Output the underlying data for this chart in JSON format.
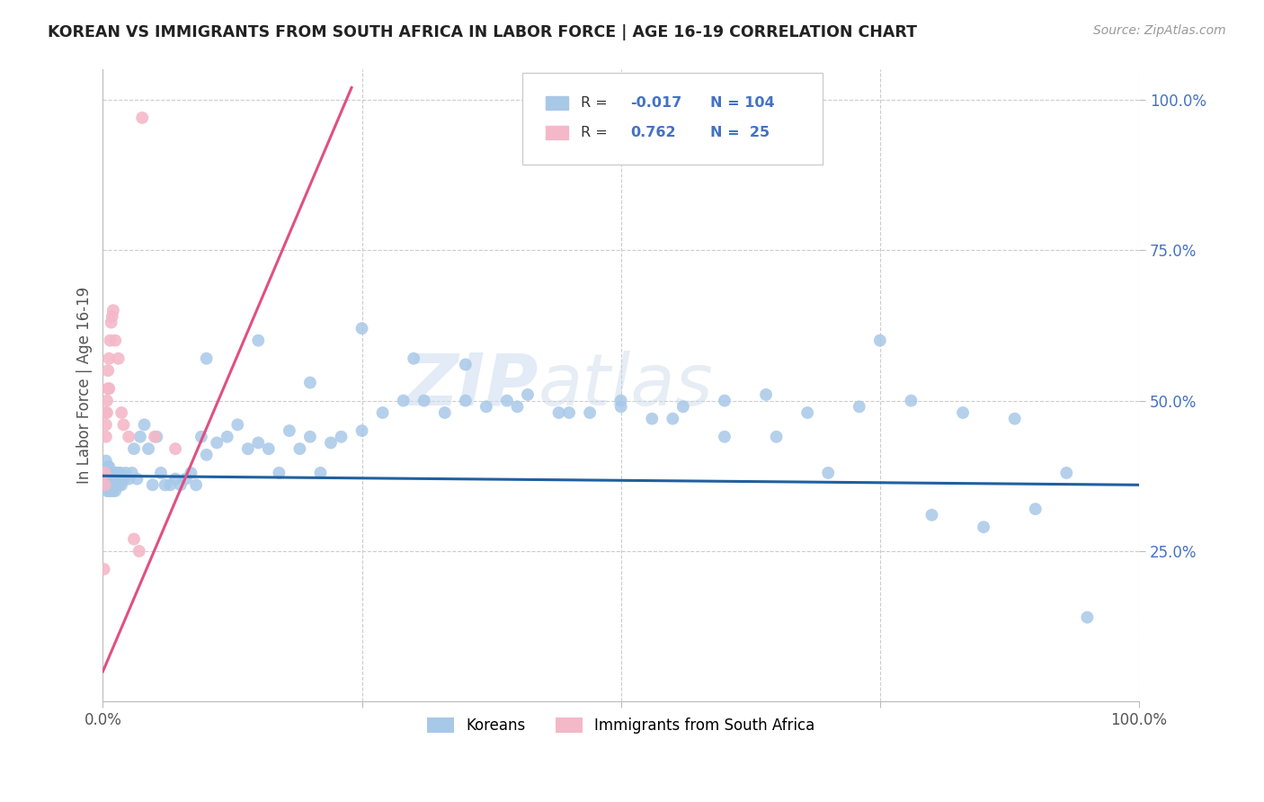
{
  "title": "KOREAN VS IMMIGRANTS FROM SOUTH AFRICA IN LABOR FORCE | AGE 16-19 CORRELATION CHART",
  "source": "Source: ZipAtlas.com",
  "ylabel": "In Labor Force | Age 16-19",
  "xlim": [
    0.0,
    1.0
  ],
  "ylim": [
    0.0,
    1.05
  ],
  "blue_color": "#a8c8e8",
  "pink_color": "#f4b8c8",
  "blue_line_color": "#2060a0",
  "pink_line_color": "#e05080",
  "watermark_zip": "ZIP",
  "watermark_atlas": "atlas",
  "legend_label_koreans": "Koreans",
  "legend_label_immigrants": "Immigrants from South Africa",
  "blue_x": [
    0.002,
    0.003,
    0.003,
    0.004,
    0.004,
    0.005,
    0.005,
    0.005,
    0.006,
    0.006,
    0.006,
    0.007,
    0.007,
    0.008,
    0.008,
    0.009,
    0.009,
    0.01,
    0.01,
    0.011,
    0.011,
    0.012,
    0.012,
    0.013,
    0.013,
    0.014,
    0.015,
    0.016,
    0.017,
    0.018,
    0.02,
    0.022,
    0.025,
    0.028,
    0.03,
    0.033,
    0.036,
    0.04,
    0.044,
    0.048,
    0.052,
    0.056,
    0.06,
    0.065,
    0.07,
    0.075,
    0.08,
    0.085,
    0.09,
    0.095,
    0.1,
    0.11,
    0.12,
    0.13,
    0.14,
    0.15,
    0.16,
    0.17,
    0.18,
    0.19,
    0.2,
    0.21,
    0.22,
    0.23,
    0.25,
    0.27,
    0.29,
    0.31,
    0.33,
    0.35,
    0.37,
    0.39,
    0.41,
    0.44,
    0.47,
    0.5,
    0.53,
    0.56,
    0.6,
    0.64,
    0.68,
    0.73,
    0.78,
    0.83,
    0.88,
    0.93,
    0.1,
    0.15,
    0.2,
    0.25,
    0.3,
    0.35,
    0.4,
    0.45,
    0.5,
    0.55,
    0.6,
    0.65,
    0.7,
    0.75,
    0.8,
    0.85,
    0.9,
    0.95
  ],
  "blue_y": [
    0.38,
    0.4,
    0.36,
    0.38,
    0.35,
    0.37,
    0.39,
    0.36,
    0.37,
    0.39,
    0.35,
    0.38,
    0.36,
    0.37,
    0.35,
    0.38,
    0.36,
    0.37,
    0.35,
    0.38,
    0.36,
    0.37,
    0.35,
    0.38,
    0.36,
    0.37,
    0.38,
    0.36,
    0.38,
    0.36,
    0.37,
    0.38,
    0.37,
    0.38,
    0.42,
    0.37,
    0.44,
    0.46,
    0.42,
    0.36,
    0.44,
    0.38,
    0.36,
    0.36,
    0.37,
    0.36,
    0.37,
    0.38,
    0.36,
    0.44,
    0.41,
    0.43,
    0.44,
    0.46,
    0.42,
    0.43,
    0.42,
    0.38,
    0.45,
    0.42,
    0.44,
    0.38,
    0.43,
    0.44,
    0.45,
    0.48,
    0.5,
    0.5,
    0.48,
    0.5,
    0.49,
    0.5,
    0.51,
    0.48,
    0.48,
    0.49,
    0.47,
    0.49,
    0.5,
    0.51,
    0.48,
    0.49,
    0.5,
    0.48,
    0.47,
    0.38,
    0.57,
    0.6,
    0.53,
    0.62,
    0.57,
    0.56,
    0.49,
    0.48,
    0.5,
    0.47,
    0.44,
    0.44,
    0.38,
    0.6,
    0.31,
    0.29,
    0.32,
    0.14
  ],
  "pink_x": [
    0.001,
    0.002,
    0.002,
    0.003,
    0.003,
    0.003,
    0.004,
    0.004,
    0.005,
    0.005,
    0.006,
    0.006,
    0.007,
    0.008,
    0.009,
    0.01,
    0.012,
    0.015,
    0.018,
    0.02,
    0.025,
    0.03,
    0.035,
    0.05,
    0.07
  ],
  "pink_y": [
    0.22,
    0.38,
    0.36,
    0.46,
    0.44,
    0.48,
    0.5,
    0.48,
    0.52,
    0.55,
    0.57,
    0.52,
    0.6,
    0.63,
    0.64,
    0.65,
    0.6,
    0.57,
    0.48,
    0.46,
    0.44,
    0.27,
    0.25,
    0.44,
    0.42
  ],
  "pink_outlier_x": [
    0.038
  ],
  "pink_outlier_y": [
    0.97
  ],
  "blue_trend_x": [
    0.0,
    1.0
  ],
  "blue_trend_y": [
    0.375,
    0.36
  ],
  "pink_trend_x0": 0.0,
  "pink_trend_y0": 0.05,
  "pink_trend_x1": 0.24,
  "pink_trend_y1": 1.02
}
